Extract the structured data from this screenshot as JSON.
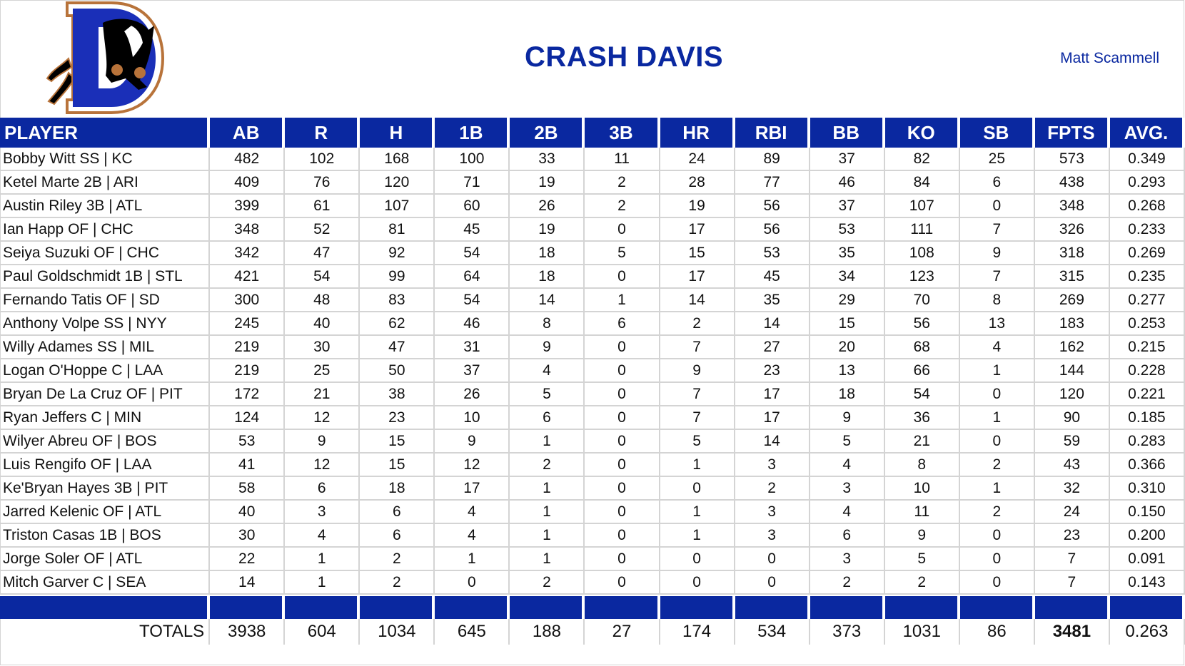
{
  "header": {
    "title": "CRASH DAVIS",
    "owner": "Matt Scammell",
    "logo": "durham-bulls-d-logo-icon"
  },
  "colors": {
    "brand_blue": "#0a28a0",
    "grid": "#d4d4d4"
  },
  "table": {
    "columns": [
      "PLAYER",
      "AB",
      "R",
      "H",
      "1B",
      "2B",
      "3B",
      "HR",
      "RBI",
      "BB",
      "KO",
      "SB",
      "FPTS",
      "AVG."
    ],
    "rows": [
      [
        "Bobby Witt SS | KC",
        "482",
        "102",
        "168",
        "100",
        "33",
        "11",
        "24",
        "89",
        "37",
        "82",
        "25",
        "573",
        "0.349"
      ],
      [
        "Ketel Marte 2B | ARI",
        "409",
        "76",
        "120",
        "71",
        "19",
        "2",
        "28",
        "77",
        "46",
        "84",
        "6",
        "438",
        "0.293"
      ],
      [
        "Austin Riley 3B | ATL",
        "399",
        "61",
        "107",
        "60",
        "26",
        "2",
        "19",
        "56",
        "37",
        "107",
        "0",
        "348",
        "0.268"
      ],
      [
        "Ian Happ OF | CHC",
        "348",
        "52",
        "81",
        "45",
        "19",
        "0",
        "17",
        "56",
        "53",
        "111",
        "7",
        "326",
        "0.233"
      ],
      [
        "Seiya Suzuki OF | CHC",
        "342",
        "47",
        "92",
        "54",
        "18",
        "5",
        "15",
        "53",
        "35",
        "108",
        "9",
        "318",
        "0.269"
      ],
      [
        "Paul Goldschmidt 1B | STL",
        "421",
        "54",
        "99",
        "64",
        "18",
        "0",
        "17",
        "45",
        "34",
        "123",
        "7",
        "315",
        "0.235"
      ],
      [
        "Fernando Tatis OF | SD",
        "300",
        "48",
        "83",
        "54",
        "14",
        "1",
        "14",
        "35",
        "29",
        "70",
        "8",
        "269",
        "0.277"
      ],
      [
        "Anthony Volpe SS | NYY",
        "245",
        "40",
        "62",
        "46",
        "8",
        "6",
        "2",
        "14",
        "15",
        "56",
        "13",
        "183",
        "0.253"
      ],
      [
        "Willy Adames SS | MIL",
        "219",
        "30",
        "47",
        "31",
        "9",
        "0",
        "7",
        "27",
        "20",
        "68",
        "4",
        "162",
        "0.215"
      ],
      [
        "Logan O'Hoppe C | LAA",
        "219",
        "25",
        "50",
        "37",
        "4",
        "0",
        "9",
        "23",
        "13",
        "66",
        "1",
        "144",
        "0.228"
      ],
      [
        "Bryan De La Cruz OF | PIT",
        "172",
        "21",
        "38",
        "26",
        "5",
        "0",
        "7",
        "17",
        "18",
        "54",
        "0",
        "120",
        "0.221"
      ],
      [
        "Ryan Jeffers C | MIN",
        "124",
        "12",
        "23",
        "10",
        "6",
        "0",
        "7",
        "17",
        "9",
        "36",
        "1",
        "90",
        "0.185"
      ],
      [
        "Wilyer Abreu OF | BOS",
        "53",
        "9",
        "15",
        "9",
        "1",
        "0",
        "5",
        "14",
        "5",
        "21",
        "0",
        "59",
        "0.283"
      ],
      [
        "Luis Rengifo OF | LAA",
        "41",
        "12",
        "15",
        "12",
        "2",
        "0",
        "1",
        "3",
        "4",
        "8",
        "2",
        "43",
        "0.366"
      ],
      [
        "Ke'Bryan Hayes 3B | PIT",
        "58",
        "6",
        "18",
        "17",
        "1",
        "0",
        "0",
        "2",
        "3",
        "10",
        "1",
        "32",
        "0.310"
      ],
      [
        "Jarred Kelenic OF | ATL",
        "40",
        "3",
        "6",
        "4",
        "1",
        "0",
        "1",
        "3",
        "4",
        "11",
        "2",
        "24",
        "0.150"
      ],
      [
        "Triston Casas 1B | BOS",
        "30",
        "4",
        "6",
        "4",
        "1",
        "0",
        "1",
        "3",
        "6",
        "9",
        "0",
        "23",
        "0.200"
      ],
      [
        "Jorge Soler OF | ATL",
        "22",
        "1",
        "2",
        "1",
        "1",
        "0",
        "0",
        "0",
        "3",
        "5",
        "0",
        "7",
        "0.091"
      ],
      [
        "Mitch Garver C | SEA",
        "14",
        "1",
        "2",
        "0",
        "2",
        "0",
        "0",
        "0",
        "2",
        "2",
        "0",
        "7",
        "0.143"
      ]
    ],
    "totals": [
      "TOTALS",
      "3938",
      "604",
      "1034",
      "645",
      "188",
      "27",
      "174",
      "534",
      "373",
      "1031",
      "86",
      "3481",
      "0.263"
    ]
  }
}
